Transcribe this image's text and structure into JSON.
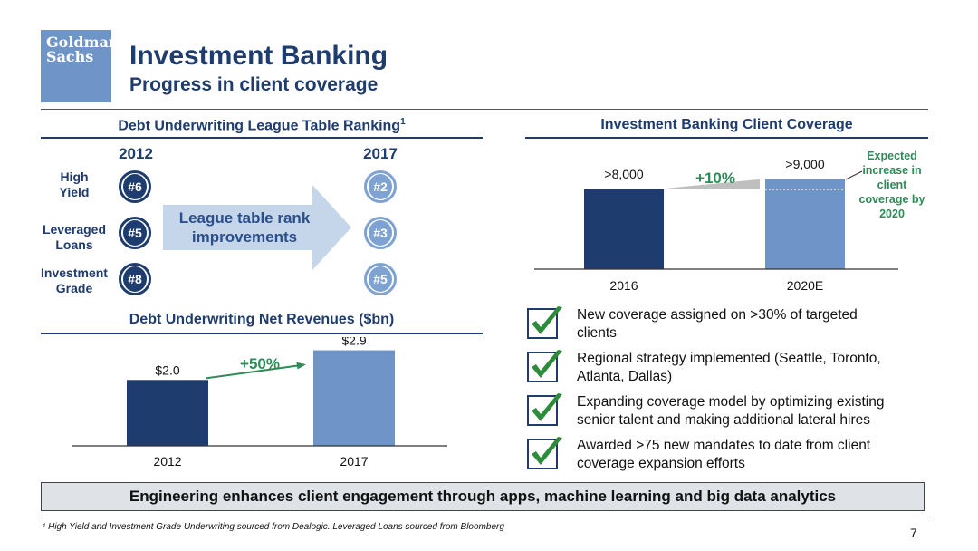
{
  "header": {
    "logo_line1": "Goldman",
    "logo_line2": "Sachs",
    "title": "Investment Banking",
    "subtitle": "Progress in client coverage"
  },
  "league_table": {
    "title": "Debt Underwriting League Table Ranking",
    "title_sup": "1",
    "year_start": "2012",
    "year_end": "2017",
    "arrow_text": "League table rank improvements",
    "rows": [
      {
        "label_line1": "High",
        "label_line2": "Yield",
        "rank_2012": "#6",
        "rank_2017": "#2"
      },
      {
        "label_line1": "Leveraged",
        "label_line2": "Loans",
        "rank_2012": "#5",
        "rank_2017": "#3"
      },
      {
        "label_line1": "Investment",
        "label_line2": "Grade",
        "rank_2012": "#8",
        "rank_2017": "#5"
      }
    ],
    "colors": {
      "rank_2012": "#1f3c6e",
      "rank_2017": "#7ea2d2",
      "arrow": "#c6d6ea"
    }
  },
  "revenues": {
    "title": "Debt Underwriting Net Revenues ($bn)"
  },
  "coverage": {
    "title": "Investment Banking Client Coverage",
    "annotation": [
      "Expected",
      "increase in",
      "client",
      "coverage by",
      "2020"
    ]
  },
  "checklist": {
    "icon": "checkmark-icon",
    "items": [
      {
        "line1": "New coverage assigned on >30% of targeted",
        "line2": "clients"
      },
      {
        "line1": "Regional strategy implemented (Seattle, Toronto,",
        "line2": "Atlanta, Dallas)"
      },
      {
        "line1": "Expanding coverage model by optimizing existing",
        "line2": "senior talent and making additional lateral hires"
      },
      {
        "line1": "Awarded >75 new mandates to date from client",
        "line2": "coverage expansion efforts"
      }
    ]
  },
  "banner": "Engineering enhances client engagement through apps, machine learning and big data analytics",
  "footnote": "¹ High Yield and Investment Grade Underwriting sourced from Dealogic. Leveraged Loans sourced from Bloomberg",
  "page_number": "7",
  "chart_data": [
    {
      "type": "bar",
      "title": "Debt Underwriting Net Revenues ($bn)",
      "categories": [
        "2012",
        "2017"
      ],
      "values": [
        2.0,
        2.9
      ],
      "value_labels": [
        "$2.0",
        "$2.9"
      ],
      "growth_label": "+50%",
      "colors": [
        "#1f3c6e",
        "#6f95c8"
      ],
      "growth_color": "#2e8b57",
      "ylim": [
        0,
        3.3
      ]
    },
    {
      "type": "bar",
      "title": "Investment Banking Client Coverage",
      "categories": [
        "2016",
        "2020E"
      ],
      "values": [
        8000,
        9000
      ],
      "value_labels": [
        ">8,000",
        ">9,000"
      ],
      "growth_label": "+10%",
      "colors": [
        "#1f3c6e",
        "#6f95c8"
      ],
      "growth_color": "#2e8b57",
      "ylim": [
        0,
        9800
      ]
    }
  ]
}
